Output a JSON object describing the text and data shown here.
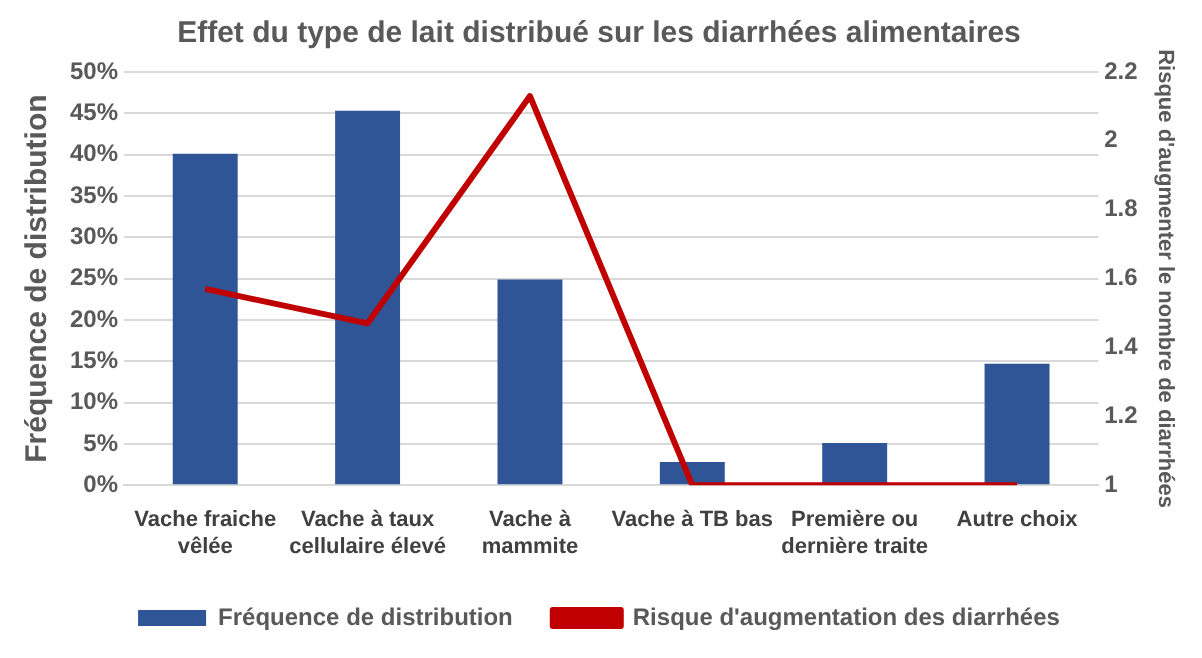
{
  "chart_data": {
    "type": "bar",
    "title": "Effet du type de lait distribué sur les diarrhées alimentaires",
    "ylabel": "Fréquence de distribution",
    "y2label": "Risque d'augmenter le nombre de diarrhées",
    "categories": [
      [
        "Vache fraiche",
        "vêlée"
      ],
      [
        "Vache à taux",
        "cellulaire élevé"
      ],
      [
        "Vache à",
        "mammite"
      ],
      [
        "Vache à TB bas"
      ],
      [
        "Première ou",
        "dernière traite"
      ],
      [
        "Autre choix"
      ]
    ],
    "series": [
      {
        "name": "Fréquence de distribution",
        "color": "#2f5597",
        "values": [
          40.1,
          45.3,
          24.9,
          2.8,
          5.1,
          14.7
        ]
      },
      {
        "name": "Risque d'augmentation des diarrhées",
        "type": "line",
        "axis": "y2",
        "color": "#c00000",
        "values": [
          1.57,
          1.47,
          2.13,
          1,
          1,
          1
        ]
      }
    ],
    "ylim": [
      0,
      50
    ],
    "yticks": [
      {
        "value": 0,
        "label": "0%"
      },
      {
        "value": 5,
        "label": "5%"
      },
      {
        "value": 10,
        "label": "10%"
      },
      {
        "value": 15,
        "label": "15%"
      },
      {
        "value": 20,
        "label": "20%"
      },
      {
        "value": 25,
        "label": "25%"
      },
      {
        "value": 30,
        "label": "30%"
      },
      {
        "value": 35,
        "label": "35%"
      },
      {
        "value": 40,
        "label": "40%"
      },
      {
        "value": 45,
        "label": "45%"
      },
      {
        "value": 50,
        "label": "50%"
      }
    ],
    "y2lim": [
      1,
      2.2
    ],
    "y2ticks": [
      1,
      1.2,
      1.4,
      1.6,
      1.8,
      2,
      2.2
    ],
    "grid": "y",
    "legend": "bottom",
    "marker": "none"
  }
}
